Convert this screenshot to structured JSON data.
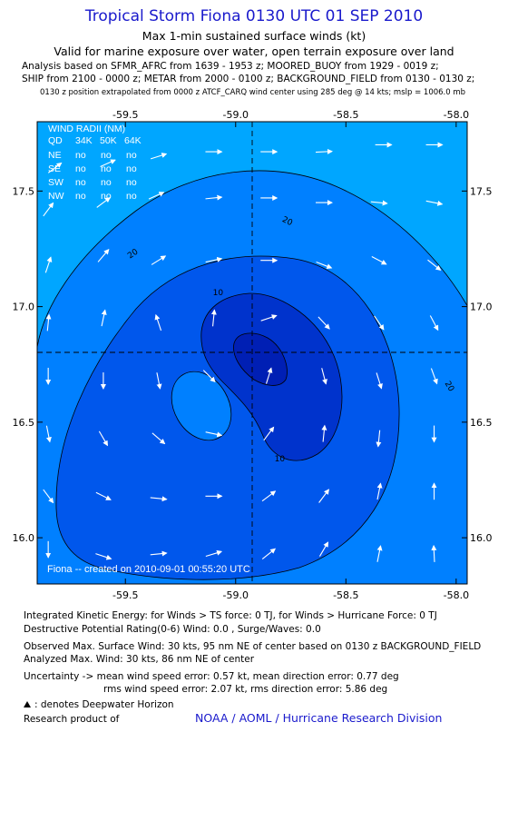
{
  "header": {
    "title": "Tropical Storm Fiona 0130 UTC 01 SEP 2010",
    "subtitle": "Max 1-min sustained surface winds (kt)",
    "valid_line": "Valid for marine exposure over water, open terrain exposure over land",
    "analysis_line_1": "Analysis based on SFMR_AFRC from 1639 - 1953 z; MOORED_BUOY from 1929 - 0019 z;",
    "analysis_line_2": "SHIP from 2100 - 0000 z; METAR from 2000 - 0100 z; BACKGROUND_FIELD from 0130 - 0130 z;",
    "position_note": "0130 z position extrapolated from 0000 z ATCF_CARQ wind center using 285 deg @ 14 kts; mslp = 1006.0 mb"
  },
  "colors": {
    "title": "#1a1acc",
    "band_lt20": "#00a6ff",
    "band_20_30": "#0080ff",
    "band_30_40": "#0057ec",
    "band_40_50": "#0033cc",
    "band_50_60": "#001fb4",
    "arrow": "#ffffff",
    "contour": "#000000"
  },
  "chart_data": {
    "type": "contour",
    "x_label": "",
    "y_label": "",
    "xlim": [
      -59.9,
      -57.95
    ],
    "ylim": [
      15.8,
      17.8
    ],
    "x_ticks": [
      -59.5,
      -59.0,
      -58.5,
      -58.0
    ],
    "x_tick_labels": [
      "-59.5",
      "-59.0",
      "-58.5",
      "-58.0"
    ],
    "y_ticks": [
      16.0,
      16.5,
      17.0,
      17.5
    ],
    "y_tick_labels": [
      "16.0",
      "16.5",
      "17.0",
      "17.5"
    ],
    "center": {
      "lon": -59.0,
      "lat": 16.8
    },
    "contour_labels": [
      {
        "text": "20",
        "lon": -59.46,
        "lat": 17.22,
        "angle": -35
      },
      {
        "text": "20",
        "lon": -58.77,
        "lat": 17.36,
        "angle": 25
      },
      {
        "text": "20",
        "lon": -58.04,
        "lat": 16.65,
        "angle": 60
      },
      {
        "text": "10",
        "lon": -59.08,
        "lat": 17.05,
        "angle": 0
      },
      {
        "text": "10",
        "lon": -58.8,
        "lat": 16.33,
        "angle": 0
      }
    ],
    "wind_radii_table": {
      "title": "WIND RADII (NM)",
      "columns": [
        "QD",
        "34K",
        "50K",
        "64K"
      ],
      "rows": [
        [
          "NE",
          "no",
          "no",
          "no"
        ],
        [
          "SE",
          "no",
          "no",
          "no"
        ],
        [
          "SW",
          "no",
          "no",
          "no"
        ],
        [
          "NW",
          "no",
          "no",
          "no"
        ]
      ]
    },
    "created_label": "Fiona -- created on 2010-09-01 00:55:20 UTC",
    "wind_vectors": [
      {
        "lon": -59.82,
        "lat": 17.6,
        "u": 0.8,
        "v": 0.6
      },
      {
        "lon": -59.58,
        "lat": 17.62,
        "u": 0.9,
        "v": 0.4
      },
      {
        "lon": -59.35,
        "lat": 17.65,
        "u": 0.95,
        "v": 0.3
      },
      {
        "lon": -59.1,
        "lat": 17.67,
        "u": 1.0,
        "v": 0.0
      },
      {
        "lon": -58.85,
        "lat": 17.67,
        "u": 1.0,
        "v": 0.0
      },
      {
        "lon": -58.6,
        "lat": 17.67,
        "u": 1.0,
        "v": 0.05
      },
      {
        "lon": -58.33,
        "lat": 17.7,
        "u": 1.0,
        "v": 0.0
      },
      {
        "lon": -58.1,
        "lat": 17.7,
        "u": 1.0,
        "v": 0.0
      },
      {
        "lon": -59.85,
        "lat": 17.42,
        "u": 0.6,
        "v": 0.8
      },
      {
        "lon": -59.6,
        "lat": 17.45,
        "u": 0.8,
        "v": 0.6
      },
      {
        "lon": -59.36,
        "lat": 17.48,
        "u": 0.9,
        "v": 0.4
      },
      {
        "lon": -59.1,
        "lat": 17.47,
        "u": 1.0,
        "v": 0.1
      },
      {
        "lon": -58.85,
        "lat": 17.47,
        "u": 1.0,
        "v": 0.0
      },
      {
        "lon": -58.6,
        "lat": 17.45,
        "u": 1.0,
        "v": 0.0
      },
      {
        "lon": -58.35,
        "lat": 17.45,
        "u": 1.0,
        "v": -0.1
      },
      {
        "lon": -58.1,
        "lat": 17.45,
        "u": 1.0,
        "v": -0.2
      },
      {
        "lon": -59.85,
        "lat": 17.18,
        "u": 0.3,
        "v": 0.9
      },
      {
        "lon": -59.6,
        "lat": 17.22,
        "u": 0.6,
        "v": 0.7
      },
      {
        "lon": -59.35,
        "lat": 17.2,
        "u": 0.8,
        "v": 0.5
      },
      {
        "lon": -59.1,
        "lat": 17.2,
        "u": 0.95,
        "v": 0.2
      },
      {
        "lon": -58.85,
        "lat": 17.2,
        "u": 1.0,
        "v": 0.0
      },
      {
        "lon": -58.6,
        "lat": 17.18,
        "u": 0.9,
        "v": -0.35
      },
      {
        "lon": -58.35,
        "lat": 17.2,
        "u": 0.85,
        "v": -0.45
      },
      {
        "lon": -58.1,
        "lat": 17.18,
        "u": 0.75,
        "v": -0.6
      },
      {
        "lon": -59.85,
        "lat": 16.93,
        "u": 0.1,
        "v": 1.0
      },
      {
        "lon": -59.6,
        "lat": 16.95,
        "u": 0.2,
        "v": 0.95
      },
      {
        "lon": -59.35,
        "lat": 16.93,
        "u": -0.3,
        "v": 0.9
      },
      {
        "lon": -59.1,
        "lat": 16.95,
        "u": 0.1,
        "v": 1.0
      },
      {
        "lon": -58.85,
        "lat": 16.95,
        "u": 0.9,
        "v": 0.3
      },
      {
        "lon": -58.6,
        "lat": 16.93,
        "u": 0.65,
        "v": -0.7
      },
      {
        "lon": -58.35,
        "lat": 16.93,
        "u": 0.55,
        "v": -0.8
      },
      {
        "lon": -58.1,
        "lat": 16.93,
        "u": 0.45,
        "v": -0.85
      },
      {
        "lon": -59.85,
        "lat": 16.7,
        "u": 0.0,
        "v": -1.0
      },
      {
        "lon": -59.6,
        "lat": 16.68,
        "u": 0.0,
        "v": -1.0
      },
      {
        "lon": -59.35,
        "lat": 16.68,
        "u": 0.2,
        "v": -1.0
      },
      {
        "lon": -59.12,
        "lat": 16.7,
        "u": 0.6,
        "v": -0.6
      },
      {
        "lon": -58.85,
        "lat": 16.7,
        "u": 0.3,
        "v": 0.95
      },
      {
        "lon": -58.6,
        "lat": 16.7,
        "u": 0.25,
        "v": -0.95
      },
      {
        "lon": -58.35,
        "lat": 16.68,
        "u": 0.3,
        "v": -0.95
      },
      {
        "lon": -58.1,
        "lat": 16.7,
        "u": 0.35,
        "v": -0.95
      },
      {
        "lon": -59.85,
        "lat": 16.45,
        "u": 0.2,
        "v": -1.0
      },
      {
        "lon": -59.6,
        "lat": 16.43,
        "u": 0.5,
        "v": -0.85
      },
      {
        "lon": -59.35,
        "lat": 16.43,
        "u": 0.7,
        "v": -0.6
      },
      {
        "lon": -59.1,
        "lat": 16.45,
        "u": 0.95,
        "v": -0.2
      },
      {
        "lon": -58.85,
        "lat": 16.45,
        "u": 0.6,
        "v": 0.8
      },
      {
        "lon": -58.6,
        "lat": 16.45,
        "u": 0.1,
        "v": 1.0
      },
      {
        "lon": -58.35,
        "lat": 16.43,
        "u": -0.1,
        "v": -1.0
      },
      {
        "lon": -58.1,
        "lat": 16.45,
        "u": 0.0,
        "v": -1.0
      },
      {
        "lon": -59.85,
        "lat": 16.18,
        "u": 0.6,
        "v": -0.8
      },
      {
        "lon": -59.6,
        "lat": 16.18,
        "u": 0.8,
        "v": -0.4
      },
      {
        "lon": -59.35,
        "lat": 16.17,
        "u": 1.0,
        "v": -0.1
      },
      {
        "lon": -59.1,
        "lat": 16.18,
        "u": 1.0,
        "v": 0.0
      },
      {
        "lon": -58.85,
        "lat": 16.18,
        "u": 0.8,
        "v": 0.6
      },
      {
        "lon": -58.6,
        "lat": 16.18,
        "u": 0.6,
        "v": 0.8
      },
      {
        "lon": -58.35,
        "lat": 16.2,
        "u": 0.2,
        "v": 1.0
      },
      {
        "lon": -58.1,
        "lat": 16.2,
        "u": 0.0,
        "v": 1.0
      },
      {
        "lon": -59.85,
        "lat": 15.95,
        "u": 0.0,
        "v": -1.0
      },
      {
        "lon": -59.6,
        "lat": 15.92,
        "u": 0.9,
        "v": -0.3
      },
      {
        "lon": -59.35,
        "lat": 15.93,
        "u": 1.0,
        "v": 0.1
      },
      {
        "lon": -59.1,
        "lat": 15.93,
        "u": 1.0,
        "v": 0.3
      },
      {
        "lon": -58.85,
        "lat": 15.93,
        "u": 0.75,
        "v": 0.6
      },
      {
        "lon": -58.6,
        "lat": 15.95,
        "u": 0.5,
        "v": 0.85
      },
      {
        "lon": -58.35,
        "lat": 15.93,
        "u": 0.2,
        "v": 1.0
      },
      {
        "lon": -58.1,
        "lat": 15.93,
        "u": -0.05,
        "v": 1.0
      }
    ]
  },
  "footer": {
    "ike_line": "Integrated Kinetic Energy:  for Winds > TS force: 0 TJ,  for Winds > Hurricane Force: 0 TJ",
    "dpr_line": "Destructive Potential Rating(0-6)   Wind: 0.0 , Surge/Waves: 0.0",
    "obs_max_line": "Observed Max. Surface Wind: 30 kts, 95 nm NE of center based on 0130 z BACKGROUND_FIELD",
    "analyzed_max_line": "Analyzed Max. Wind: 30 kts, 86 nm NE of center",
    "uncertainty_line_1": "Uncertainty -> mean wind speed error: 0.57 kt,   mean direction error: 0.77 deg",
    "uncertainty_line_2": "rms wind speed error: 2.07 kt,   rms direction error: 5.86 deg",
    "deepwater_note": ": denotes Deepwater Horizon",
    "research_label": "Research product of",
    "organization": "NOAA / AOML / Hurricane Research Division"
  }
}
